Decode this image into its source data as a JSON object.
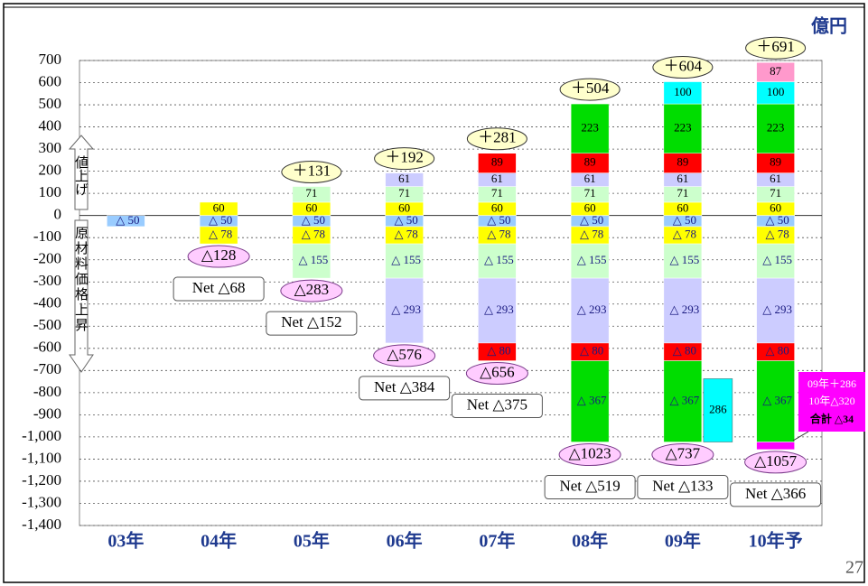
{
  "chart_data": {
    "type": "stacked_bar",
    "unit": "億円",
    "up_label": "値上げ",
    "down_label": "原材料価格上昇",
    "categories": [
      "03年",
      "04年",
      "05年",
      "06年",
      "07年",
      "08年",
      "09年",
      "10年予"
    ],
    "ylim": [
      -1400,
      700
    ],
    "yticks": [
      700,
      600,
      500,
      400,
      300,
      200,
      100,
      0,
      -100,
      -200,
      -300,
      -400,
      -500,
      -600,
      -700,
      -800,
      -900,
      {
        "value": -1000,
        "label": "-1,000"
      },
      {
        "value": -1100,
        "label": "-1,100"
      },
      {
        "value": -1200,
        "label": "-1,200"
      },
      {
        "value": -1300,
        "label": "-1,300"
      },
      {
        "value": -1400,
        "label": "-1,400"
      }
    ],
    "grid": true,
    "series": [
      {
        "color": "#ffff00",
        "values": [
          null,
          60,
          60,
          60,
          60,
          60,
          60,
          60
        ]
      },
      {
        "color": "#ccffcc",
        "values": [
          null,
          null,
          71,
          71,
          71,
          71,
          71,
          71
        ]
      },
      {
        "color": "#ccccff",
        "values": [
          null,
          null,
          null,
          61,
          61,
          61,
          61,
          61
        ]
      },
      {
        "color": "#ff0000",
        "values": [
          null,
          null,
          null,
          null,
          89,
          89,
          89,
          89
        ]
      },
      {
        "color": "#00dd00",
        "values": [
          null,
          null,
          null,
          null,
          null,
          223,
          223,
          223
        ]
      },
      {
        "color": "#00ffff",
        "values": [
          null,
          null,
          null,
          null,
          null,
          null,
          100,
          100
        ]
      },
      {
        "color": "#ff99cc",
        "values": [
          null,
          null,
          null,
          null,
          null,
          null,
          null,
          87
        ]
      },
      {
        "color": "#99ccff",
        "values": [
          -50,
          -50,
          -50,
          -50,
          -50,
          -50,
          -50,
          -50
        ],
        "value_labels": [
          "△ 50",
          "△ 50",
          "△ 50",
          "△ 50",
          "△ 50",
          "△ 50",
          "△ 50",
          "△ 50"
        ]
      },
      {
        "color": "#ffff00",
        "values": [
          null,
          -78,
          -78,
          -78,
          -78,
          -78,
          -78,
          -78
        ],
        "value_labels": [
          null,
          "△ 78",
          "△ 78",
          "△ 78",
          "△ 78",
          "△ 78",
          "△ 78",
          "△ 78"
        ]
      },
      {
        "color": "#ccffcc",
        "values": [
          null,
          null,
          -155,
          -155,
          -155,
          -155,
          -155,
          -155
        ],
        "value_labels": [
          null,
          null,
          "△ 155",
          "△ 155",
          "△ 155",
          "△ 155",
          "△ 155",
          "△ 155"
        ]
      },
      {
        "color": "#ccccff",
        "values": [
          null,
          null,
          null,
          -293,
          -293,
          -293,
          -293,
          -293
        ],
        "value_labels": [
          null,
          null,
          null,
          "△ 293",
          "△ 293",
          "△ 293",
          "△ 293",
          "△ 293"
        ]
      },
      {
        "color": "#ff0000",
        "values": [
          null,
          null,
          null,
          null,
          -80,
          -80,
          -80,
          -80
        ],
        "value_labels": [
          null,
          null,
          null,
          null,
          "△ 80",
          "△ 80",
          "△ 80",
          "△ 80"
        ]
      },
      {
        "color": "#00dd00",
        "values": [
          null,
          null,
          null,
          null,
          null,
          -367,
          -367,
          -367
        ],
        "value_labels": [
          null,
          null,
          null,
          null,
          null,
          "△ 367",
          "△ 367",
          "△ 367"
        ]
      },
      {
        "color": "#ff00ff",
        "values": [
          null,
          null,
          null,
          null,
          null,
          null,
          null,
          -34
        ],
        "value_labels": [
          null,
          null,
          null,
          null,
          null,
          null,
          null,
          null
        ]
      }
    ],
    "offset_bar": {
      "color": "#00ffff",
      "values": [
        null,
        null,
        null,
        null,
        null,
        null,
        286,
        null
      ]
    },
    "positive_totals": {
      "values": [
        null,
        null,
        131,
        192,
        281,
        504,
        604,
        691
      ],
      "value_labels": [
        null,
        null,
        "＋131",
        "＋192",
        "＋281",
        "＋504",
        "＋604",
        "＋691"
      ]
    },
    "negative_totals": {
      "values": [
        null,
        -128,
        -283,
        -576,
        -656,
        -1023,
        -737,
        -1057
      ],
      "value_labels": [
        null,
        "△128",
        "△283",
        "△576",
        "△656",
        "△1023",
        "△737",
        "△1057"
      ]
    },
    "net": {
      "values": [
        null,
        -68,
        -152,
        -384,
        -375,
        -519,
        -133,
        -366
      ],
      "value_labels": [
        null,
        "Net △68",
        "Net △152",
        "Net △384",
        "Net △375",
        "Net △519",
        "Net △133",
        "Net △366"
      ]
    },
    "annotation": [
      "09年＋286",
      "10年△320",
      "合計 △34"
    ],
    "page_number": "27"
  }
}
